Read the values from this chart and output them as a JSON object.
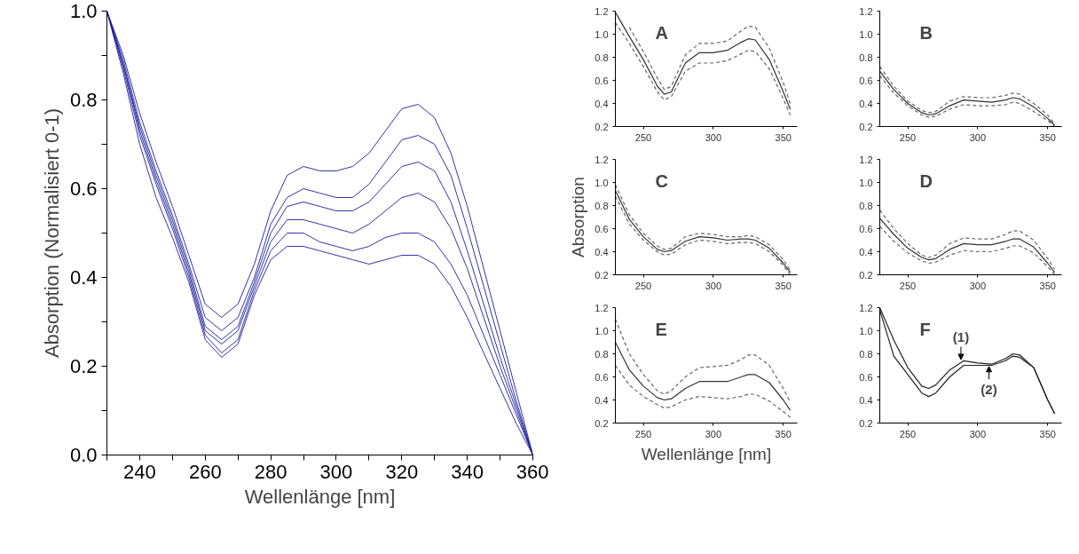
{
  "chart_data": [
    {
      "type": "line",
      "xlabel": "Wellenlänge [nm]",
      "ylabel": "Absorption (Normalisiert 0-1)",
      "x": [
        230,
        235,
        240,
        245,
        250,
        255,
        260,
        265,
        270,
        275,
        280,
        285,
        290,
        295,
        300,
        305,
        310,
        315,
        320,
        325,
        330,
        335,
        340,
        345,
        350,
        355,
        360
      ],
      "xlim": [
        230,
        360
      ],
      "xticks": [
        {
          "value": 230,
          "label": null
        },
        {
          "value": 240,
          "label": "240"
        },
        {
          "value": 250,
          "label": null
        },
        {
          "value": 260,
          "label": "260"
        },
        {
          "value": 270,
          "label": null
        },
        {
          "value": 280,
          "label": "280"
        },
        {
          "value": 290,
          "label": null
        },
        {
          "value": 300,
          "label": "300"
        },
        {
          "value": 310,
          "label": null
        },
        {
          "value": 320,
          "label": "320"
        },
        {
          "value": 330,
          "label": null
        },
        {
          "value": 340,
          "label": "340"
        },
        {
          "value": 350,
          "label": null
        },
        {
          "value": 360,
          "label": "360"
        }
      ],
      "ylim": [
        0,
        1
      ],
      "yticks": [
        {
          "value": 0,
          "label": "0.0"
        },
        {
          "value": 0.1,
          "label": null
        },
        {
          "value": 0.2,
          "label": "0.2"
        },
        {
          "value": 0.3,
          "label": null
        },
        {
          "value": 0.4,
          "label": "0.4"
        },
        {
          "value": 0.5,
          "label": null
        },
        {
          "value": 0.6,
          "label": "0.6"
        },
        {
          "value": 0.7,
          "label": null
        },
        {
          "value": 0.8,
          "label": "0.8"
        },
        {
          "value": 0.9,
          "label": null
        },
        {
          "value": 1,
          "label": "1.0"
        }
      ],
      "series": [
        {
          "color": "#1c1c9c",
          "line_style": "solid",
          "values": [
            1.0,
            0.9,
            0.77,
            0.66,
            0.56,
            0.45,
            0.34,
            0.31,
            0.34,
            0.43,
            0.55,
            0.63,
            0.65,
            0.64,
            0.64,
            0.65,
            0.68,
            0.73,
            0.78,
            0.79,
            0.76,
            0.68,
            0.56,
            0.42,
            0.28,
            0.14,
            0.0
          ]
        },
        {
          "color": "#1c1c9c",
          "line_style": "solid",
          "values": [
            1.0,
            0.89,
            0.75,
            0.64,
            0.54,
            0.43,
            0.31,
            0.28,
            0.31,
            0.4,
            0.52,
            0.58,
            0.6,
            0.59,
            0.58,
            0.58,
            0.61,
            0.66,
            0.71,
            0.72,
            0.7,
            0.63,
            0.51,
            0.38,
            0.25,
            0.12,
            0.0
          ]
        },
        {
          "color": "#1c1c9c",
          "line_style": "solid",
          "values": [
            1.0,
            0.88,
            0.74,
            0.63,
            0.53,
            0.42,
            0.29,
            0.26,
            0.29,
            0.39,
            0.5,
            0.56,
            0.57,
            0.56,
            0.55,
            0.55,
            0.57,
            0.61,
            0.65,
            0.66,
            0.64,
            0.57,
            0.46,
            0.34,
            0.22,
            0.11,
            0.0
          ]
        },
        {
          "color": "#1c1c9c",
          "line_style": "solid",
          "values": [
            1.0,
            0.88,
            0.73,
            0.62,
            0.52,
            0.41,
            0.28,
            0.25,
            0.28,
            0.38,
            0.48,
            0.53,
            0.53,
            0.52,
            0.51,
            0.5,
            0.52,
            0.55,
            0.58,
            0.59,
            0.57,
            0.51,
            0.42,
            0.31,
            0.2,
            0.1,
            0.0
          ]
        },
        {
          "color": "#1c1c9c",
          "line_style": "solid",
          "values": [
            1.0,
            0.87,
            0.72,
            0.61,
            0.51,
            0.4,
            0.27,
            0.23,
            0.26,
            0.37,
            0.46,
            0.5,
            0.5,
            0.48,
            0.47,
            0.46,
            0.47,
            0.49,
            0.5,
            0.5,
            0.48,
            0.43,
            0.36,
            0.27,
            0.18,
            0.09,
            0.0
          ]
        },
        {
          "color": "#1c1c9c",
          "line_style": "solid",
          "values": [
            1.0,
            0.86,
            0.7,
            0.58,
            0.49,
            0.39,
            0.26,
            0.22,
            0.25,
            0.36,
            0.44,
            0.47,
            0.47,
            0.46,
            0.45,
            0.44,
            0.43,
            0.44,
            0.45,
            0.45,
            0.43,
            0.38,
            0.31,
            0.23,
            0.15,
            0.07,
            0.0
          ]
        }
      ]
    },
    {
      "type": "line",
      "title": "A",
      "x": [
        230,
        240,
        250,
        260,
        265,
        270,
        280,
        290,
        300,
        310,
        320,
        325,
        330,
        340,
        350,
        355
      ],
      "xlim": [
        230,
        360
      ],
      "xticks": [
        250,
        300,
        350
      ],
      "ylim": [
        0.2,
        1.2
      ],
      "yticks": [
        0.2,
        0.4,
        0.6,
        0.8,
        {
          "value": 1,
          "label": "1.0"
        },
        1.2
      ],
      "series": [
        {
          "color": "#333333",
          "line_style": "solid",
          "values": [
            1.19,
            0.98,
            0.78,
            0.55,
            0.48,
            0.5,
            0.75,
            0.84,
            0.84,
            0.86,
            0.93,
            0.96,
            0.95,
            0.78,
            0.5,
            0.35
          ]
        },
        {
          "color": "#666666",
          "line_style": "dashed",
          "values": [
            null,
            1.06,
            0.85,
            0.62,
            0.52,
            0.55,
            0.82,
            0.92,
            0.92,
            0.94,
            1.03,
            1.07,
            1.06,
            0.88,
            0.58,
            0.4
          ]
        },
        {
          "color": "#666666",
          "line_style": "dashed",
          "values": [
            1.1,
            0.92,
            0.72,
            0.5,
            0.43,
            0.46,
            0.68,
            0.75,
            0.75,
            0.77,
            0.83,
            0.86,
            0.85,
            0.7,
            0.44,
            0.3
          ]
        }
      ]
    },
    {
      "type": "line",
      "title": "B",
      "x": [
        230,
        240,
        250,
        260,
        265,
        270,
        280,
        290,
        300,
        310,
        320,
        325,
        330,
        340,
        350,
        355
      ],
      "xlim": [
        230,
        360
      ],
      "xticks": [
        250,
        300,
        350
      ],
      "ylim": [
        0.2,
        1.2
      ],
      "yticks": [
        0.2,
        0.4,
        0.6,
        0.8,
        {
          "value": 1,
          "label": "1.0"
        },
        1.2
      ],
      "series": [
        {
          "color": "#333333",
          "line_style": "solid",
          "values": [
            0.68,
            0.52,
            0.4,
            0.32,
            0.3,
            0.31,
            0.38,
            0.43,
            0.42,
            0.41,
            0.43,
            0.45,
            0.44,
            0.37,
            0.27,
            0.21
          ]
        },
        {
          "color": "#666666",
          "line_style": "dashed",
          "values": [
            0.72,
            0.55,
            0.42,
            0.34,
            0.32,
            0.33,
            0.42,
            0.46,
            0.45,
            0.45,
            0.47,
            0.49,
            0.48,
            0.4,
            0.3,
            0.22
          ]
        },
        {
          "color": "#666666",
          "line_style": "dashed",
          "values": [
            0.64,
            0.49,
            0.38,
            0.3,
            0.28,
            0.29,
            0.35,
            0.39,
            0.38,
            0.38,
            0.39,
            0.41,
            0.4,
            0.33,
            0.25,
            0.2
          ]
        }
      ]
    },
    {
      "type": "line",
      "title": "C",
      "ylabel": "Absorption",
      "x": [
        230,
        240,
        250,
        260,
        265,
        270,
        280,
        290,
        300,
        310,
        320,
        325,
        330,
        340,
        350,
        355
      ],
      "xlim": [
        230,
        360
      ],
      "xticks": [
        250,
        300,
        350
      ],
      "ylim": [
        0.2,
        1.2
      ],
      "yticks": [
        0.2,
        0.4,
        0.6,
        0.8,
        {
          "value": 1,
          "label": "1.0"
        },
        1.2
      ],
      "series": [
        {
          "color": "#333333",
          "line_style": "solid",
          "values": [
            0.93,
            0.68,
            0.53,
            0.42,
            0.4,
            0.41,
            0.49,
            0.53,
            0.52,
            0.5,
            0.51,
            0.51,
            0.5,
            0.43,
            0.3,
            0.22
          ]
        },
        {
          "color": "#666666",
          "line_style": "dashed",
          "values": [
            0.98,
            0.72,
            0.56,
            0.45,
            0.42,
            0.43,
            0.53,
            0.56,
            0.55,
            0.53,
            0.53,
            0.54,
            0.53,
            0.46,
            0.33,
            0.24
          ]
        },
        {
          "color": "#666666",
          "line_style": "dashed",
          "values": [
            0.88,
            0.64,
            0.5,
            0.4,
            0.37,
            0.38,
            0.46,
            0.5,
            0.49,
            0.47,
            0.48,
            0.48,
            0.47,
            0.4,
            0.28,
            0.2
          ]
        }
      ]
    },
    {
      "type": "line",
      "title": "D",
      "x": [
        230,
        240,
        250,
        260,
        265,
        270,
        280,
        290,
        300,
        310,
        320,
        325,
        330,
        340,
        350,
        355
      ],
      "xlim": [
        230,
        360
      ],
      "xticks": [
        250,
        300,
        350
      ],
      "ylim": [
        0.2,
        1.2
      ],
      "yticks": [
        0.2,
        0.4,
        0.6,
        0.8,
        {
          "value": 1,
          "label": "1.0"
        },
        1.2
      ],
      "series": [
        {
          "color": "#333333",
          "line_style": "solid",
          "values": [
            0.69,
            0.55,
            0.43,
            0.35,
            0.33,
            0.34,
            0.42,
            0.47,
            0.46,
            0.46,
            0.49,
            0.51,
            0.51,
            0.44,
            0.3,
            0.22
          ]
        },
        {
          "color": "#666666",
          "line_style": "dashed",
          "values": [
            0.76,
            0.6,
            0.47,
            0.37,
            0.35,
            0.37,
            0.47,
            0.52,
            0.51,
            0.51,
            0.55,
            0.58,
            0.58,
            0.5,
            0.34,
            0.25
          ]
        },
        {
          "color": "#666666",
          "line_style": "dashed",
          "values": [
            0.62,
            0.49,
            0.39,
            0.32,
            0.3,
            0.31,
            0.37,
            0.41,
            0.4,
            0.4,
            0.43,
            0.45,
            0.45,
            0.39,
            0.27,
            0.2
          ]
        }
      ]
    },
    {
      "type": "line",
      "title": "E",
      "xlabel": "Wellenlänge [nm]",
      "x": [
        230,
        240,
        250,
        260,
        265,
        270,
        280,
        290,
        300,
        310,
        320,
        325,
        330,
        340,
        350,
        355
      ],
      "xlim": [
        230,
        360
      ],
      "xticks": [
        250,
        300,
        350
      ],
      "ylim": [
        0.2,
        1.2
      ],
      "yticks": [
        0.2,
        0.4,
        0.6,
        0.8,
        {
          "value": 1,
          "label": "1.0"
        },
        1.2
      ],
      "series": [
        {
          "color": "#333333",
          "line_style": "solid",
          "values": [
            0.9,
            0.66,
            0.52,
            0.42,
            0.4,
            0.41,
            0.5,
            0.56,
            0.56,
            0.56,
            0.6,
            0.62,
            0.62,
            0.55,
            0.4,
            0.31
          ]
        },
        {
          "color": "#666666",
          "line_style": "dashed",
          "values": [
            1.1,
            0.8,
            0.62,
            0.48,
            0.45,
            0.48,
            0.6,
            0.68,
            0.69,
            0.7,
            0.75,
            0.79,
            0.79,
            0.7,
            0.5,
            0.38
          ]
        },
        {
          "color": "#666666",
          "line_style": "dashed",
          "values": [
            0.7,
            0.53,
            0.43,
            0.36,
            0.33,
            0.34,
            0.4,
            0.43,
            0.42,
            0.41,
            0.43,
            0.45,
            0.45,
            0.39,
            0.3,
            0.25
          ]
        }
      ]
    },
    {
      "type": "line",
      "title": "F",
      "x": [
        230,
        240,
        250,
        260,
        265,
        270,
        280,
        290,
        300,
        310,
        320,
        325,
        330,
        340,
        350,
        355
      ],
      "xlim": [
        230,
        360
      ],
      "xticks": [
        250,
        300,
        350
      ],
      "ylim": [
        0.2,
        1.2
      ],
      "yticks": [
        0.2,
        0.4,
        0.6,
        0.8,
        {
          "value": 1,
          "label": "1.0"
        },
        1.2
      ],
      "annotations": [
        {
          "text": "(1)",
          "x": 288,
          "y": 0.74
        },
        {
          "text": "(2)",
          "x": 308,
          "y": 0.7
        }
      ],
      "series": [
        {
          "color": "#222222",
          "line_style": "solid",
          "values": [
            1.2,
            0.92,
            0.68,
            0.52,
            0.5,
            0.53,
            0.66,
            0.74,
            0.72,
            0.71,
            0.76,
            0.8,
            0.79,
            0.68,
            0.4,
            0.28
          ]
        },
        {
          "color": "#222222",
          "line_style": "solid",
          "values": [
            1.18,
            0.78,
            0.62,
            0.46,
            0.43,
            0.46,
            0.6,
            0.7,
            0.7,
            0.7,
            0.74,
            0.78,
            0.77,
            0.68,
            0.4,
            0.28
          ]
        }
      ]
    }
  ]
}
